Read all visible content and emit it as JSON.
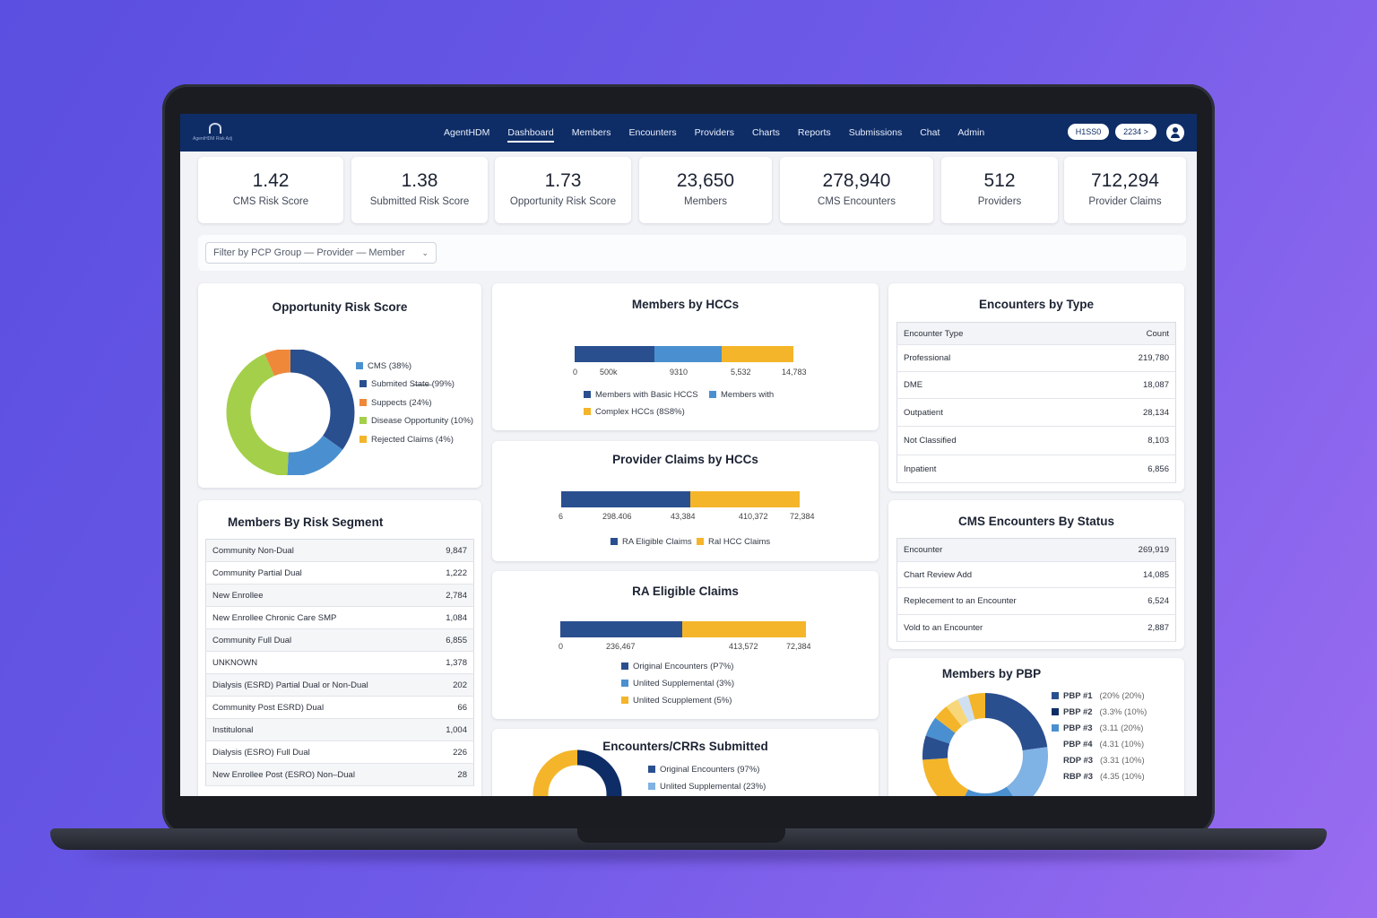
{
  "nav": {
    "logo_text": "AgentHDM Risk Adj",
    "links": [
      "AgentHDM",
      "Dashboard",
      "Members",
      "Encounters",
      "Providers",
      "Charts",
      "Reports",
      "Submissions",
      "Chat",
      "Admin"
    ],
    "active": "Dashboard",
    "pill1": "H1SS0",
    "pill2": "2234 >"
  },
  "kpis": [
    {
      "value": "1.42",
      "label": "CMS Risk Score"
    },
    {
      "value": "1.38",
      "label": "Submitted Risk Score"
    },
    {
      "value": "1.73",
      "label": "Opportunity Risk Score"
    },
    {
      "value": "23,650",
      "label": "Members"
    },
    {
      "value": "278,940",
      "label": "CMS Encounters"
    },
    {
      "value": "512",
      "label": "Providers"
    },
    {
      "value": "712,294",
      "label": "Provider Claims"
    }
  ],
  "filter": {
    "label": "Filter by PCP Group — Provider — Member"
  },
  "opportunity": {
    "title": "Opportunity Risk Score",
    "legend": [
      "CMS  (38%)",
      "Submited S̶t̶a̶t̶e̶  (99%)",
      "Suppects  (24%)",
      "Disease Opportunity  (10%)",
      "Rejected Claims  (4%)"
    ],
    "colors": [
      "#4a90d0",
      "#2a4f8f",
      "#f0883a",
      "#a4cf4a",
      "#f4b52a"
    ]
  },
  "members_hcc": {
    "title": "Members by HCCs",
    "ticks": [
      "0",
      "500k",
      "9310",
      "5,532",
      "14,783"
    ],
    "legend": [
      "Members with Basic HCCS",
      "Members with",
      "Complex HCCs  (8S8%)"
    ]
  },
  "provider_claims": {
    "title": "Provider Claims by HCCs",
    "ticks": [
      "6",
      "298.406",
      "43,384",
      "410,372",
      "72,384"
    ],
    "legend": [
      "RA Eligible Claims",
      "Ral HCC Claims"
    ]
  },
  "ra_claims": {
    "title": "RA Eligible Claims",
    "ticks": [
      "0",
      "236,467",
      "413,572",
      "72,384"
    ],
    "legend": [
      "Original Encounters  (P7%)",
      "Unlited Supplemental  (3%)",
      "Unlited Scupplement  (5%)"
    ]
  },
  "encounters_crr": {
    "title": "Encounters/CRRs Submitted",
    "legend": [
      "Original Encounters  (97%)",
      "Unlited Supplemental  (23%)"
    ]
  },
  "risk_segment": {
    "title": "Members By Risk Segment",
    "rows": [
      [
        "Community Non-Dual",
        "9,847"
      ],
      [
        "Community Partial Dual",
        "1,222"
      ],
      [
        "New Enrollee",
        "2,784"
      ],
      [
        "New Enrollee Chronic Care SMP",
        "1,084"
      ],
      [
        "Community Full Dual",
        "6,855"
      ],
      [
        "UNKNOWN",
        "1,378"
      ],
      [
        "Dialysis (ESRD) Partial Dual or Non-Dual",
        "202"
      ],
      [
        "Community Post ESRD) Dual",
        "66"
      ],
      [
        "Institulonal",
        "1,004"
      ],
      [
        "Dialysis (ESRO) Full Dual",
        "226"
      ],
      [
        "New Enrollee Post (ESRO) Non–Dual",
        "28"
      ]
    ]
  },
  "enc_type": {
    "title": "Encounters by Type",
    "header": [
      "Encounter Type",
      "Count"
    ],
    "rows": [
      [
        "Professional",
        "219,780"
      ],
      [
        "DME",
        "18,087"
      ],
      [
        "Outpatient",
        "28,134"
      ],
      [
        "Not Classified",
        "8,103"
      ],
      [
        "Inpatient",
        "6,856"
      ]
    ]
  },
  "cms_status": {
    "title": "CMS Encounters By Status",
    "rows": [
      [
        "Encounter",
        "269,919"
      ],
      [
        "Chart Review Add",
        "14,085"
      ],
      [
        "Replecement to an Encounter",
        "6,524"
      ],
      [
        "Vold to an Encounter",
        "2,887"
      ]
    ]
  },
  "pbp": {
    "title": "Members by PBP",
    "legend": [
      {
        "name": "PBP #1",
        "val": "(20% (20%)"
      },
      {
        "name": "PBP #2",
        "val": "(3.3% (10%)"
      },
      {
        "name": "PBP #3",
        "val": "(3.11 (20%)"
      },
      {
        "name": "PBP #4",
        "val": "(4.31 (10%)"
      },
      {
        "name": "RDP #3",
        "val": "(3.31 (10%)"
      },
      {
        "name": "RBP #3",
        "val": "(4.35 (10%)"
      }
    ]
  }
}
